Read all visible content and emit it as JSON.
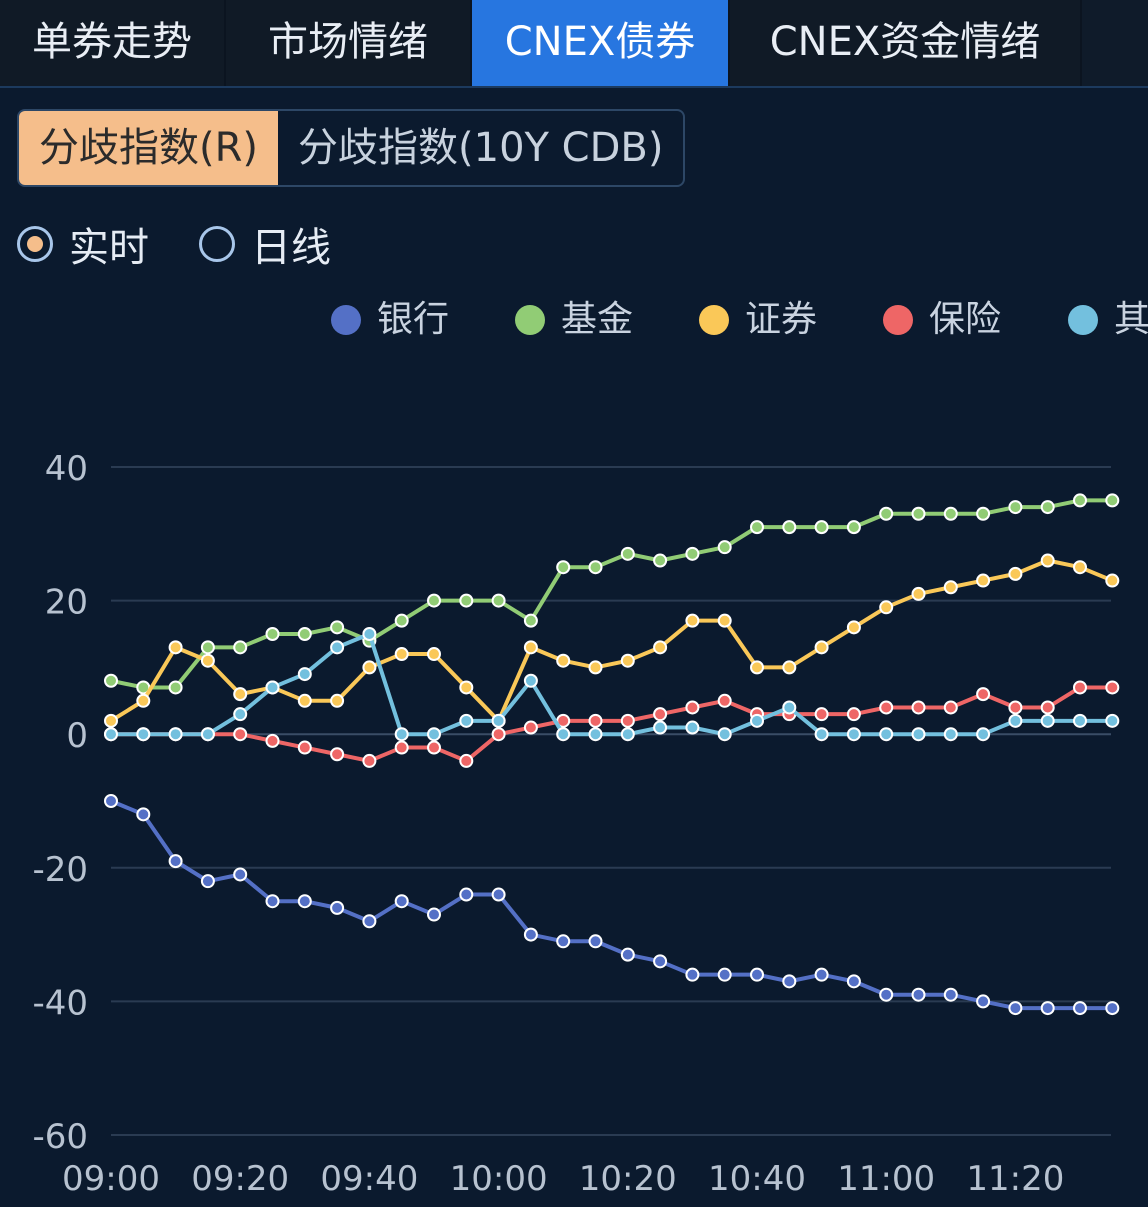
{
  "tabs": [
    {
      "label": "单券走势",
      "active": false
    },
    {
      "label": "市场情绪",
      "active": false
    },
    {
      "label": "CNEX债券",
      "active": true
    },
    {
      "label": "CNEX资金情绪",
      "active": false
    }
  ],
  "segments": [
    {
      "label": "分歧指数(R)",
      "active": true
    },
    {
      "label": "分歧指数(10Y CDB)",
      "active": false
    }
  ],
  "modes": [
    {
      "label": "实时",
      "selected": true
    },
    {
      "label": "日线",
      "selected": false
    }
  ],
  "colors": {
    "tab_active": "#2776e0",
    "segment_active": "#f5be8b",
    "background": "#0b1a2e"
  },
  "chart_data": {
    "type": "line",
    "title": "",
    "xlabel": "",
    "ylabel": "",
    "ylim": [
      -60,
      40
    ],
    "yticks": [
      40,
      20,
      0,
      -20,
      -40,
      -60
    ],
    "xtick_labels": [
      "09:00",
      "09:20",
      "09:40",
      "10:00",
      "10:20",
      "10:40",
      "11:00",
      "11:20"
    ],
    "grid": true,
    "legend": "top",
    "x": [
      "09:00",
      "09:05",
      "09:10",
      "09:15",
      "09:20",
      "09:25",
      "09:30",
      "09:35",
      "09:40",
      "09:45",
      "09:50",
      "09:55",
      "10:00",
      "10:05",
      "10:10",
      "10:15",
      "10:20",
      "10:25",
      "10:30",
      "10:35",
      "10:40",
      "10:45",
      "10:50",
      "10:55",
      "11:00",
      "11:05",
      "11:10",
      "11:15",
      "11:20",
      "11:25",
      "11:30",
      "11:35"
    ],
    "series": [
      {
        "name": "银行",
        "color": "#5470c6",
        "values": [
          -10,
          -12,
          -19,
          -22,
          -21,
          -25,
          -25,
          -26,
          -28,
          -25,
          -27,
          -24,
          -24,
          -30,
          -31,
          -31,
          -33,
          -34,
          -36,
          -36,
          -36,
          -37,
          -36,
          -37,
          -39,
          -39,
          -39,
          -40,
          -41,
          -41,
          -41,
          -41
        ]
      },
      {
        "name": "基金",
        "color": "#91cc75",
        "values": [
          8,
          7,
          7,
          13,
          13,
          15,
          15,
          16,
          14,
          17,
          20,
          20,
          20,
          17,
          25,
          25,
          27,
          26,
          27,
          28,
          31,
          31,
          31,
          31,
          33,
          33,
          33,
          33,
          34,
          34,
          35,
          35
        ]
      },
      {
        "name": "证券",
        "color": "#fac858",
        "values": [
          2,
          5,
          13,
          11,
          6,
          7,
          5,
          5,
          10,
          12,
          12,
          7,
          2,
          13,
          11,
          10,
          11,
          13,
          17,
          17,
          10,
          10,
          13,
          16,
          19,
          21,
          22,
          23,
          24,
          26,
          25,
          23
        ]
      },
      {
        "name": "保险",
        "color": "#ee6666",
        "values": [
          0,
          0,
          0,
          0,
          0,
          -1,
          -2,
          -3,
          -4,
          -2,
          -2,
          -4,
          0,
          1,
          2,
          2,
          2,
          3,
          4,
          5,
          3,
          3,
          3,
          3,
          4,
          4,
          4,
          6,
          4,
          4,
          7,
          7
        ]
      },
      {
        "name": "其",
        "color": "#73c0de",
        "values": [
          0,
          0,
          0,
          0,
          3,
          7,
          9,
          13,
          15,
          0,
          0,
          2,
          2,
          8,
          0,
          0,
          0,
          1,
          1,
          0,
          2,
          4,
          0,
          0,
          0,
          0,
          0,
          0,
          2,
          2,
          2,
          2
        ]
      }
    ]
  }
}
